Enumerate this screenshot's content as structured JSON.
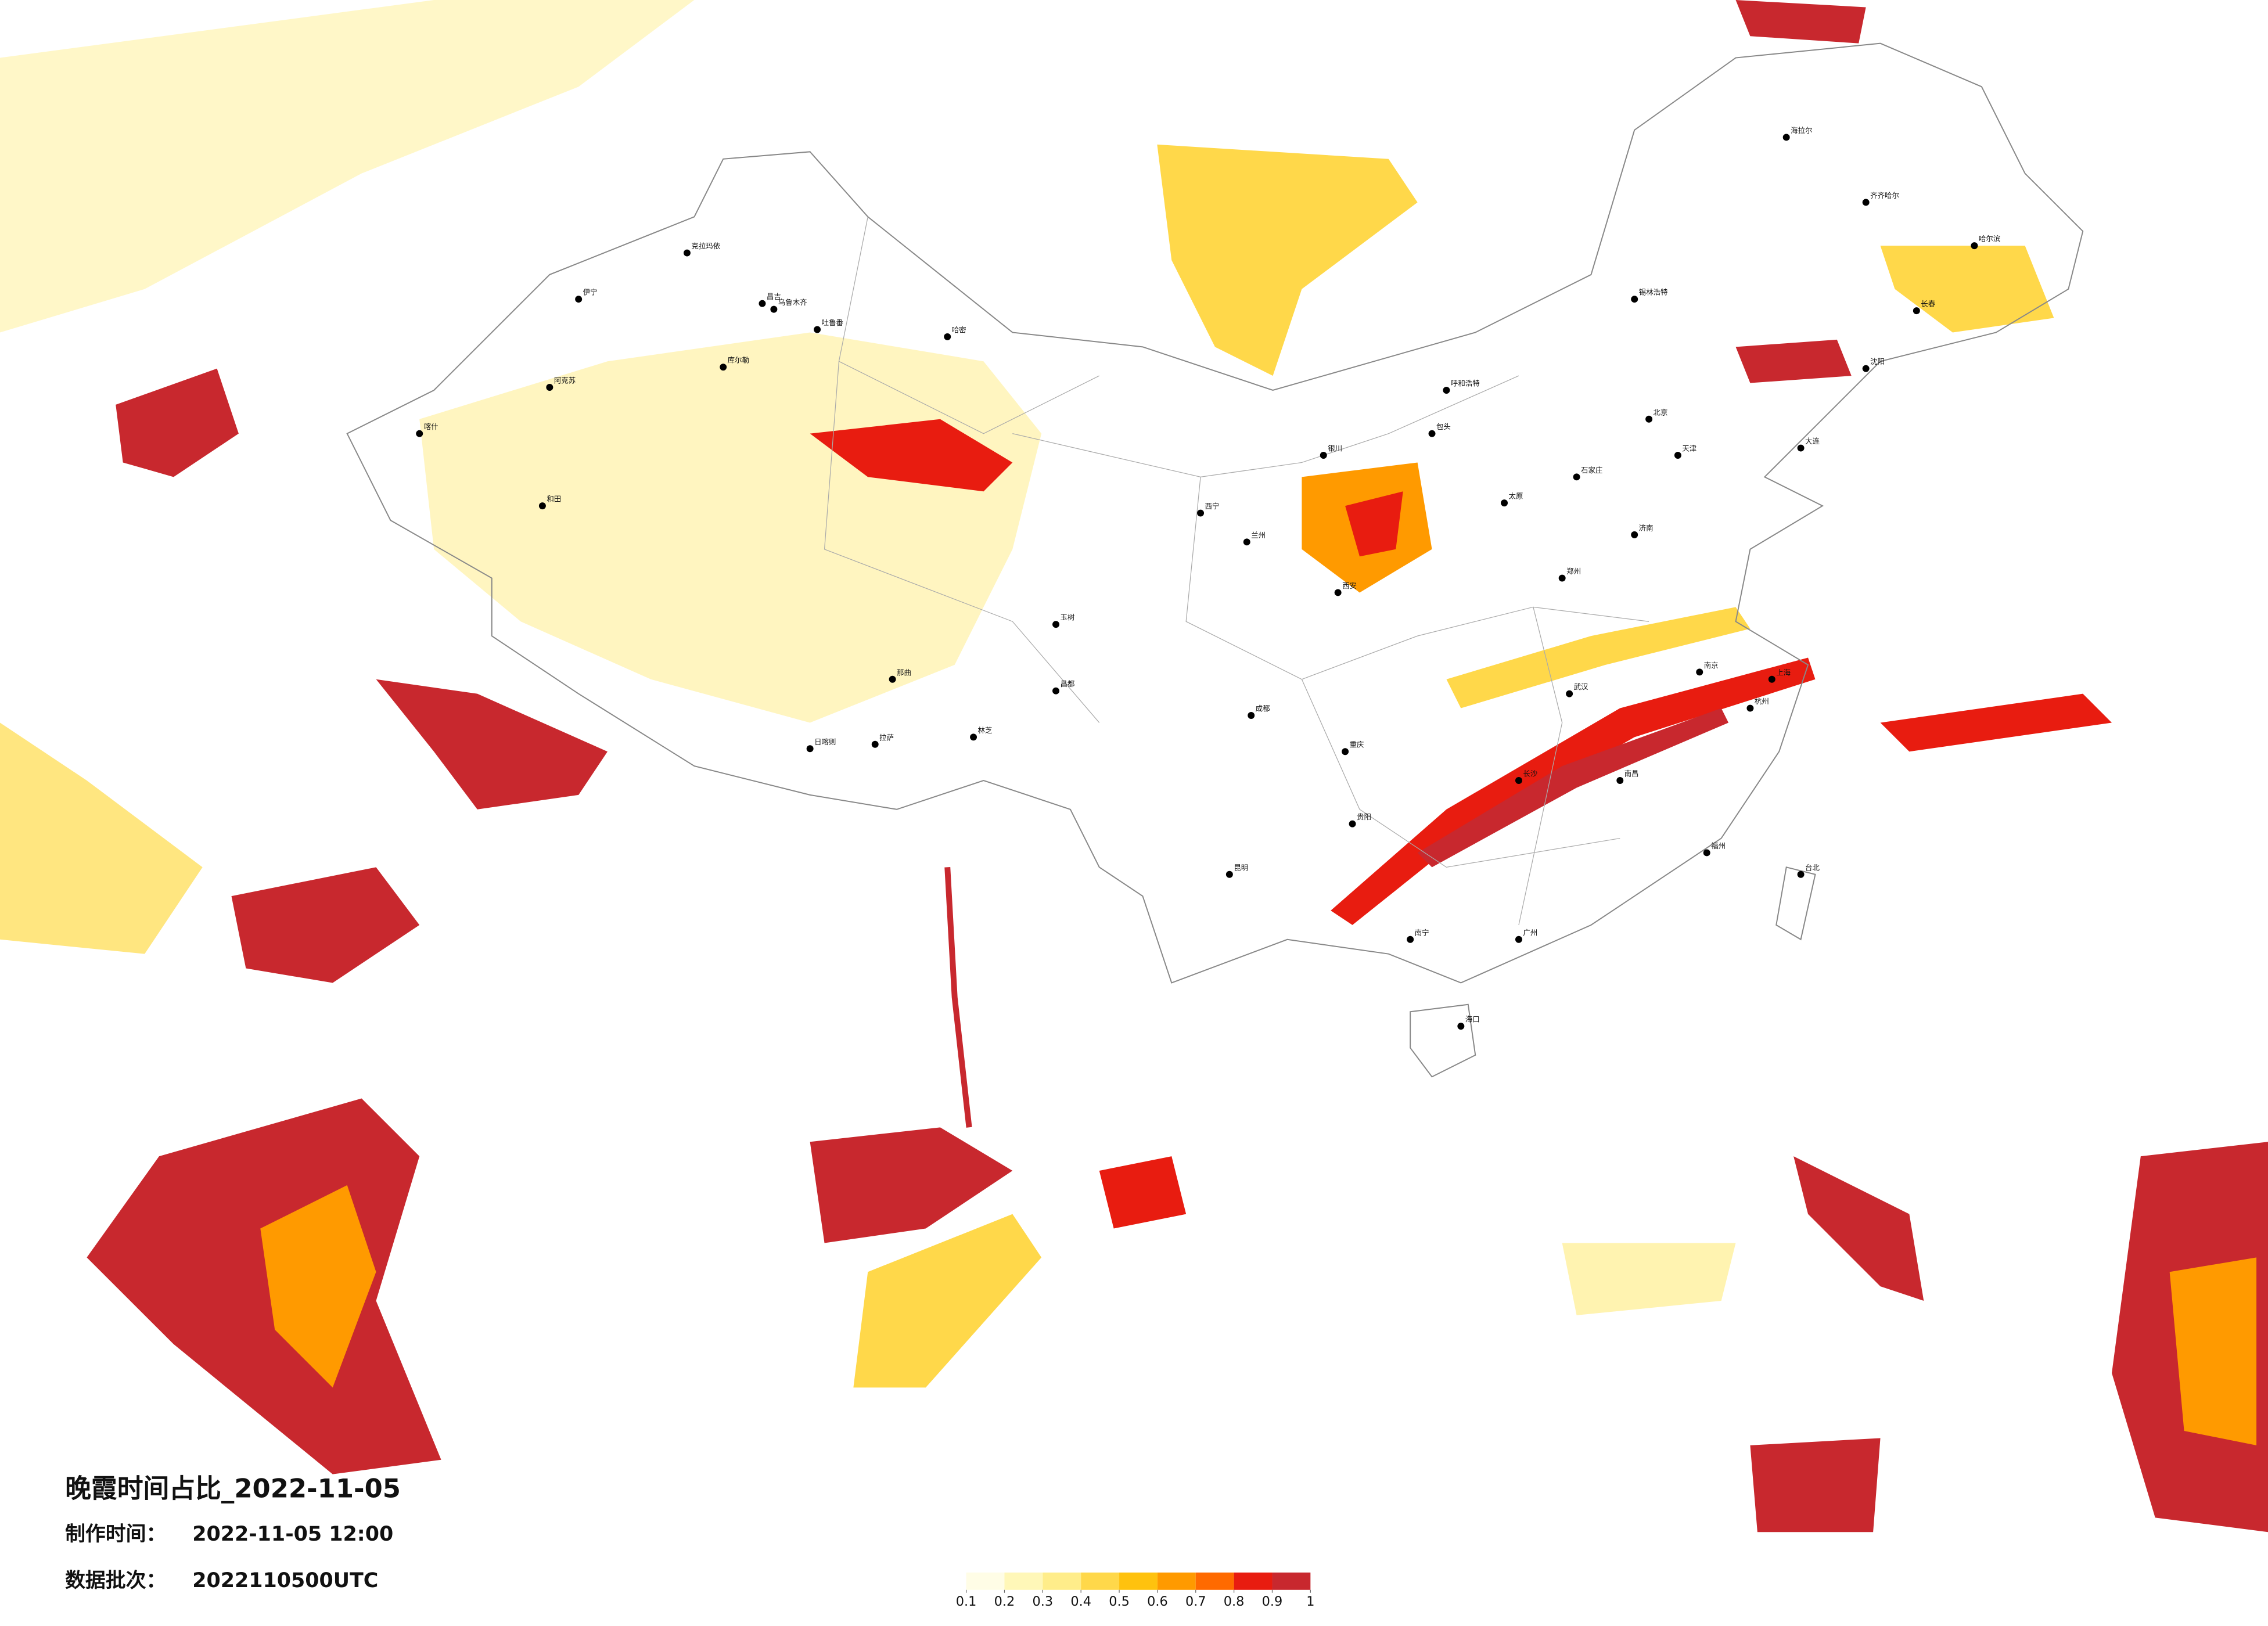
{
  "title": "晚霞时间占比_2022-11-05",
  "info": [
    {
      "label": "制作时间：",
      "value": "2022-11-05 12:00"
    },
    {
      "label": "数据批次：",
      "value": "2022110500UTC"
    }
  ],
  "legend": {
    "ticks": [
      0.1,
      0.2,
      0.3,
      0.4,
      0.5,
      0.6,
      0.7,
      0.8,
      0.9,
      1
    ],
    "colors": [
      "#fffde6",
      "#fff7b8",
      "#ffed8a",
      "#ffd84a",
      "#ffc20e",
      "#ff9a00",
      "#ff6a00",
      "#e81c10",
      "#c8282e"
    ]
  },
  "cities": [
    "克拉玛依",
    "伊宁",
    "昌吉",
    "乌鲁木齐",
    "吐鲁番",
    "哈密",
    "库尔勒",
    "阿克苏",
    "喀什",
    "和田",
    "日喀则",
    "拉萨",
    "林芝",
    "那曲",
    "昌都",
    "玉树",
    "西宁",
    "兰州",
    "银川",
    "呼和浩特",
    "包头",
    "北京",
    "天津",
    "石家庄",
    "太原",
    "济南",
    "郑州",
    "西安",
    "成都",
    "重庆",
    "贵阳",
    "昆明",
    "南宁",
    "广州",
    "长沙",
    "武汉",
    "南昌",
    "南京",
    "上海",
    "杭州",
    "福州",
    "台北",
    "海口",
    "哈尔滨",
    "长春",
    "沈阳",
    "大连",
    "锡林浩特",
    "海拉尔",
    "齐齐哈尔"
  ]
}
